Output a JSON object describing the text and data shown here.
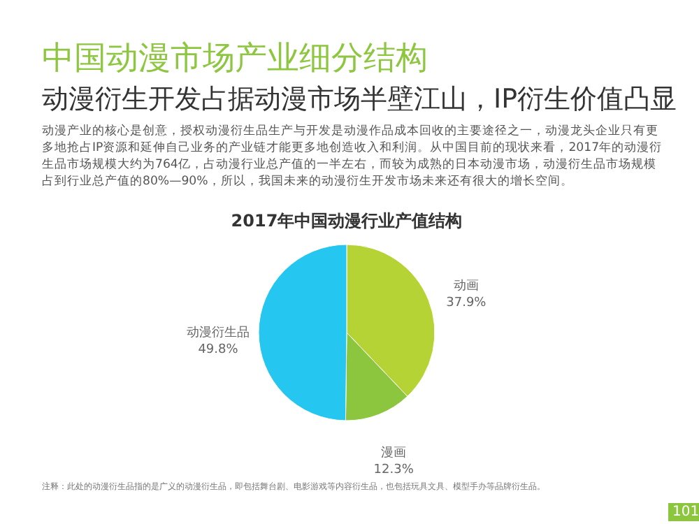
{
  "chart_data": {
    "type": "pie",
    "title": "中国动漫市场产业细分结构",
    "subtitle": "动漫衍生开发占据动漫市场半壁江山，IP衍生价值凸显",
    "categories": [
      "动画",
      "漫画",
      "动漫衍生品"
    ],
    "values": [
      37.9,
      12.3,
      49.8
    ],
    "value_labels": [
      "37.9%",
      "12.3%",
      "49.8%"
    ],
    "colors": [
      "#b5d334",
      "#8cc63f",
      "#25c6ef"
    ],
    "annotations": [
      "动漫产业的核心是创意，授权动漫衍生品生产与开发是动漫作品成本回收的主要途径之一，动漫龙头企业只有更多地抢占IP资源和延伸自己业务的产业链才能更多地创造收入和利润。从中国目前的现状来看，2017年的动漫衍生品市场规模大约为764亿，占动漫行业总产值的一半左右，而较为成熟的日本动漫市场，动漫衍生品市场规模占到行业总产值的80%—90%，所以，我国未来的动漫衍生开发市场未来还有很大的增长空间。",
      "2017年中国动漫行业产值结构",
      "注释：此处的动漫衍生品指的是广义的动漫衍生品，即包括舞台剧、电影游戏等内容衍生品，也包括玩具文具、模型手办等品牌衍生品。",
      "101"
    ]
  }
}
